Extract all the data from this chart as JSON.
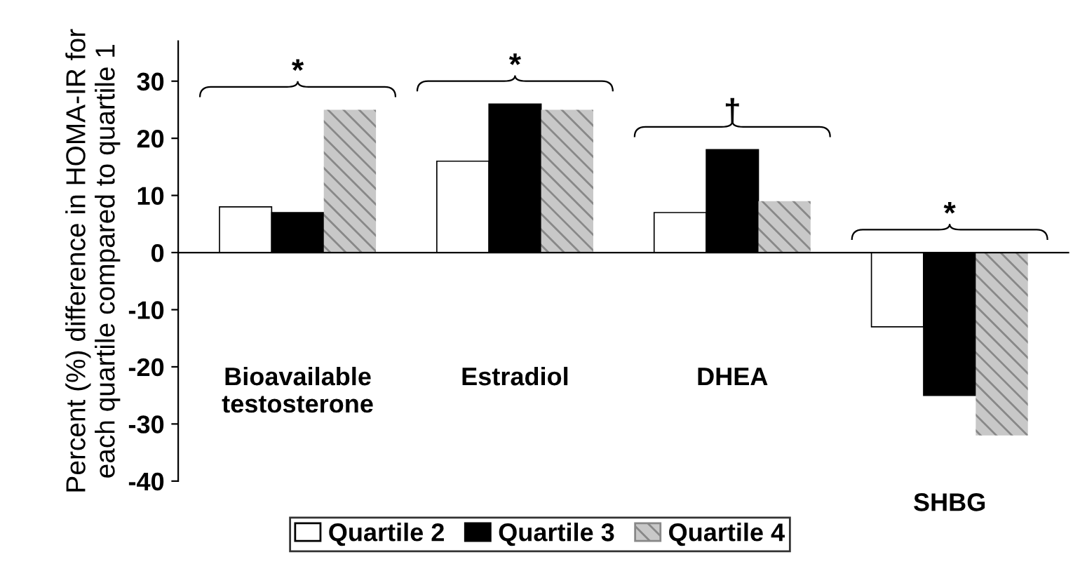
{
  "chart_data": {
    "type": "bar",
    "ylabel": "Percent (%) difference in HOMA-IR for\neach quartile compared to quartile 1",
    "categories": [
      "Bioavailable\ntestosterone",
      "Estradiol",
      "DHEA",
      "SHBG"
    ],
    "series": [
      {
        "name": "Quartile 2",
        "color": "#ffffff",
        "values": [
          8,
          16,
          7,
          -13
        ]
      },
      {
        "name": "Quartile 3",
        "color": "#000000",
        "values": [
          7,
          26,
          18,
          -25
        ]
      },
      {
        "name": "Quartile 4",
        "color": "#c8c8c8",
        "values": [
          25,
          25,
          9,
          -32
        ]
      }
    ],
    "ylim": [
      -40,
      37
    ],
    "yticks": [
      -40,
      -30,
      -20,
      -10,
      0,
      10,
      20,
      30
    ],
    "ref_lines": [
      {
        "axis": "y",
        "value": 0,
        "color": "#000000"
      }
    ],
    "annotations": [
      "*",
      "*",
      "†",
      "*"
    ],
    "legend": "bottom"
  }
}
